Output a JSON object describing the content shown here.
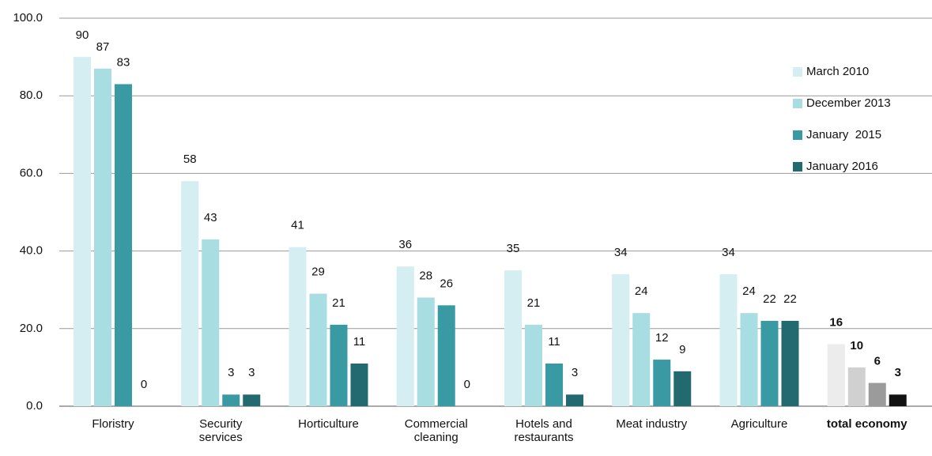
{
  "chart_data": {
    "type": "bar",
    "categories": [
      "Floristry",
      "Security services",
      "Horticulture",
      "Commercial cleaning",
      "Hotels and restaurants",
      "Meat industry",
      "Agriculture",
      "total economy"
    ],
    "series": [
      {
        "name": "March 2010",
        "color": "#d4eef2",
        "values": [
          90,
          58,
          41,
          36,
          35,
          34,
          34,
          16
        ]
      },
      {
        "name": "December 2013",
        "color": "#a8dde2",
        "values": [
          87,
          43,
          29,
          28,
          21,
          24,
          24,
          10
        ]
      },
      {
        "name": "January  2015",
        "color": "#3a9aa3",
        "values": [
          83,
          3,
          21,
          26,
          11,
          12,
          22,
          6
        ]
      },
      {
        "name": "January 2016",
        "color": "#236a70",
        "values": [
          0,
          3,
          11,
          0,
          3,
          9,
          22,
          3
        ]
      }
    ],
    "highlight_category": "total economy",
    "highlight_colors": [
      "#ececec",
      "#d0d0d0",
      "#9b9b9b",
      "#111111"
    ],
    "ylim": [
      0,
      100
    ],
    "yticks": [
      {
        "value": 0,
        "label": "0.0"
      },
      {
        "value": 20,
        "label": "20.0"
      },
      {
        "value": 40,
        "label": "40.0"
      },
      {
        "value": 60,
        "label": "60.0"
      },
      {
        "value": 80,
        "label": "80.0"
      },
      {
        "value": 100,
        "label": "100.0"
      }
    ],
    "grid": true,
    "legend": "upper right"
  }
}
